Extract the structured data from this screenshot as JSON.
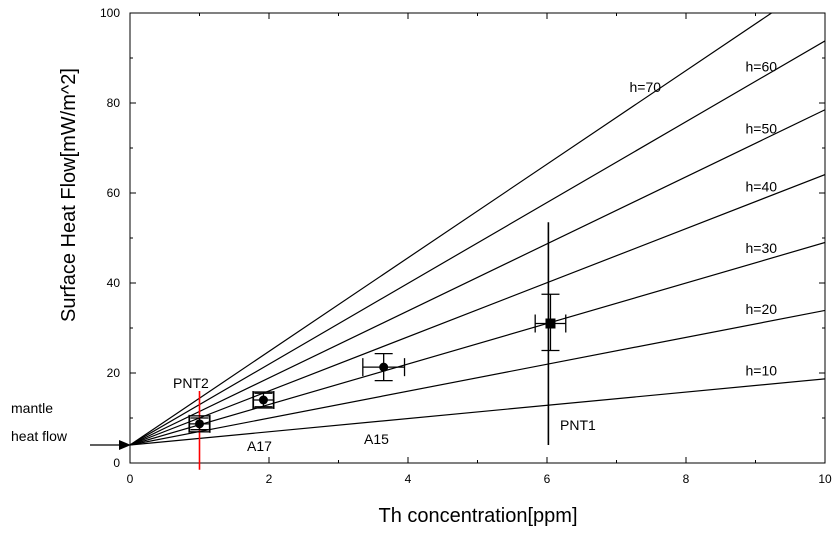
{
  "chart_data": {
    "type": "line",
    "xlabel": "Th concentration[ppm]",
    "ylabel": "Surface Heat Flow[mW/m^2]",
    "xlim": [
      0,
      10
    ],
    "ylim": [
      0,
      100
    ],
    "xticks": [
      0,
      2,
      4,
      6,
      8,
      10
    ],
    "yticks": [
      0,
      20,
      40,
      60,
      80,
      100
    ],
    "grid": false,
    "lines": {
      "intercept": 4,
      "series": [
        {
          "name": "h=10",
          "slope": 1.47
        },
        {
          "name": "h=20",
          "slope": 2.99
        },
        {
          "name": "h=30",
          "slope": 4.5
        },
        {
          "name": "h=40",
          "slope": 6.01
        },
        {
          "name": "h=50",
          "slope": 7.45
        },
        {
          "name": "h=60",
          "slope": 8.98
        },
        {
          "name": "h=70",
          "slope": 10.4
        }
      ]
    },
    "points": [
      {
        "x": 1.0,
        "y": 8.7,
        "xerr": 0.15,
        "yerr_low": 1.3,
        "yerr_high": 1.3,
        "marker": "circle-square",
        "color": "#000000"
      },
      {
        "x": 1.92,
        "y": 14.0,
        "xerr": 0.15,
        "yerr_low": 1.5,
        "yerr_high": 1.5,
        "marker": "circle-square",
        "color": "#000000"
      },
      {
        "x": 3.65,
        "y": 21.3,
        "xerr": 0.3,
        "yerr_low": 3.0,
        "yerr_high": 3.0,
        "marker": "circle",
        "color": "#000000"
      },
      {
        "x": 6.05,
        "y": 31.0,
        "xerr": 0.22,
        "yerr_low": 6.0,
        "yerr_high": 6.5,
        "marker": "square",
        "color": "#000000"
      }
    ],
    "vertical_bars": [
      {
        "name": "PNT2",
        "x": 1.0,
        "y_low": -1.5,
        "y_high": 16.0,
        "color": "#ff0000"
      },
      {
        "name": "PNT1",
        "x": 6.02,
        "y_low": 4.0,
        "y_high": 53.5,
        "color": "#000000"
      }
    ],
    "annotations": {
      "pnt2": "PNT2",
      "pnt1": "PNT1",
      "a17": "A17",
      "a15": "A15",
      "mantle_1": "mantle",
      "mantle_2": "heat flow"
    }
  }
}
